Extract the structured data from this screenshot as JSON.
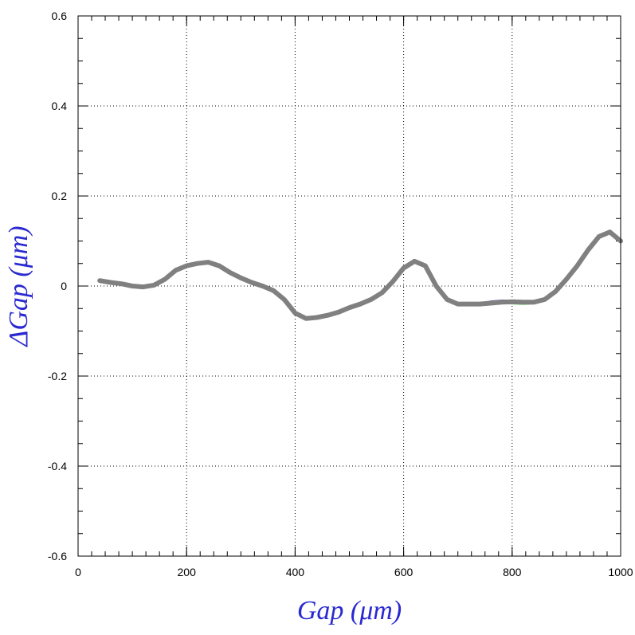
{
  "chart_data": {
    "type": "line",
    "title": "",
    "xlabel": "Gap  (μm)",
    "ylabel": "ΔGap  (μm)",
    "xlim": [
      0,
      1000
    ],
    "ylim": [
      -0.6,
      0.6
    ],
    "x_ticks": [
      "0",
      "200",
      "400",
      "600",
      "800",
      "1000"
    ],
    "y_ticks": [
      "0.6",
      "0.4",
      "0.2",
      "0",
      "-0.2",
      "-0.4",
      "-0.6"
    ],
    "grid": true,
    "legend": "none",
    "colors": {
      "title": "#2a2ad0",
      "series": [
        "#0000ff",
        "#ff0000",
        "#00cc00",
        "#808080"
      ]
    },
    "series": [
      {
        "color": "#0000ff",
        "x": [
          40,
          60,
          80,
          100,
          120,
          140,
          160,
          180,
          200,
          220,
          240,
          260,
          280,
          300,
          320,
          340,
          360,
          380,
          400,
          420,
          440,
          460,
          480,
          500,
          520,
          540,
          560,
          580,
          600,
          620,
          640,
          660,
          680,
          700,
          720,
          740,
          760,
          780,
          800,
          820,
          840,
          860,
          880,
          900,
          920,
          940,
          960,
          980,
          1000
        ],
        "values": [
          0.012,
          0.008,
          0.005,
          0.0,
          -0.002,
          0.002,
          0.015,
          0.035,
          0.045,
          0.05,
          0.053,
          0.045,
          0.03,
          0.018,
          0.008,
          0.0,
          -0.01,
          -0.03,
          -0.06,
          -0.072,
          -0.07,
          -0.065,
          -0.058,
          -0.048,
          -0.04,
          -0.03,
          -0.015,
          0.01,
          0.04,
          0.055,
          0.045,
          0.0,
          -0.03,
          -0.04,
          -0.038,
          -0.04,
          -0.035,
          -0.033,
          -0.033,
          -0.034,
          -0.036,
          -0.03,
          -0.012,
          0.015,
          0.045,
          0.08,
          0.11,
          0.12,
          0.1
        ]
      },
      {
        "color": "#ff0000",
        "x": [
          40,
          60,
          80,
          100,
          120,
          140,
          160,
          180,
          200,
          220,
          240,
          260,
          280,
          300,
          320,
          340,
          360,
          380,
          400,
          420,
          440,
          460,
          480,
          500,
          520,
          540,
          560,
          580,
          600,
          620,
          640,
          660,
          680,
          700,
          720,
          740,
          760,
          780,
          800,
          820,
          840,
          860,
          880,
          900,
          920,
          940,
          960,
          980,
          1000
        ],
        "values": [
          0.012,
          0.008,
          0.005,
          0.0,
          -0.002,
          0.002,
          0.015,
          0.035,
          0.045,
          0.05,
          0.053,
          0.045,
          0.03,
          0.018,
          0.008,
          0.0,
          -0.01,
          -0.03,
          -0.06,
          -0.072,
          -0.07,
          -0.065,
          -0.058,
          -0.048,
          -0.04,
          -0.03,
          -0.015,
          0.01,
          0.04,
          0.055,
          0.045,
          0.0,
          -0.03,
          -0.04,
          -0.04,
          -0.042,
          -0.04,
          -0.038,
          -0.036,
          -0.035,
          -0.035,
          -0.03,
          -0.012,
          0.015,
          0.045,
          0.08,
          0.11,
          0.12,
          0.1
        ]
      },
      {
        "color": "#00cc00",
        "x": [
          40,
          60,
          80,
          100,
          120,
          140,
          160,
          180,
          200,
          220,
          240,
          260,
          280,
          300,
          320,
          340,
          360,
          380,
          400,
          420,
          440,
          460,
          480,
          500,
          520,
          540,
          560,
          580,
          600,
          620,
          640,
          660,
          680,
          700,
          720,
          740,
          760,
          780,
          800,
          820,
          840,
          860,
          880,
          900,
          920,
          940,
          960,
          980,
          1000
        ],
        "values": [
          0.012,
          0.008,
          0.005,
          0.0,
          -0.002,
          0.002,
          0.015,
          0.035,
          0.045,
          0.05,
          0.053,
          0.045,
          0.03,
          0.018,
          0.008,
          0.0,
          -0.01,
          -0.03,
          -0.06,
          -0.072,
          -0.07,
          -0.065,
          -0.058,
          -0.048,
          -0.04,
          -0.03,
          -0.015,
          0.01,
          0.04,
          0.055,
          0.045,
          0.0,
          -0.03,
          -0.04,
          -0.04,
          -0.04,
          -0.038,
          -0.037,
          -0.038,
          -0.039,
          -0.038,
          -0.03,
          -0.012,
          0.015,
          0.045,
          0.08,
          0.11,
          0.12,
          0.1
        ]
      },
      {
        "color": "#808080",
        "x": [
          40,
          60,
          80,
          100,
          120,
          140,
          160,
          180,
          200,
          220,
          240,
          260,
          280,
          300,
          320,
          340,
          360,
          380,
          400,
          420,
          440,
          460,
          480,
          500,
          520,
          540,
          560,
          580,
          600,
          620,
          640,
          660,
          680,
          700,
          720,
          740,
          760,
          780,
          800,
          820,
          840,
          860,
          880,
          900,
          920,
          940,
          960,
          980,
          1000
        ],
        "values": [
          0.012,
          0.008,
          0.005,
          0.0,
          -0.002,
          0.002,
          0.015,
          0.035,
          0.045,
          0.05,
          0.053,
          0.045,
          0.03,
          0.018,
          0.008,
          0.0,
          -0.01,
          -0.03,
          -0.06,
          -0.072,
          -0.07,
          -0.065,
          -0.058,
          -0.048,
          -0.04,
          -0.03,
          -0.015,
          0.01,
          0.04,
          0.055,
          0.045,
          0.0,
          -0.03,
          -0.04,
          -0.04,
          -0.04,
          -0.038,
          -0.036,
          -0.035,
          -0.036,
          -0.036,
          -0.03,
          -0.012,
          0.015,
          0.045,
          0.08,
          0.11,
          0.12,
          0.1
        ]
      }
    ]
  }
}
